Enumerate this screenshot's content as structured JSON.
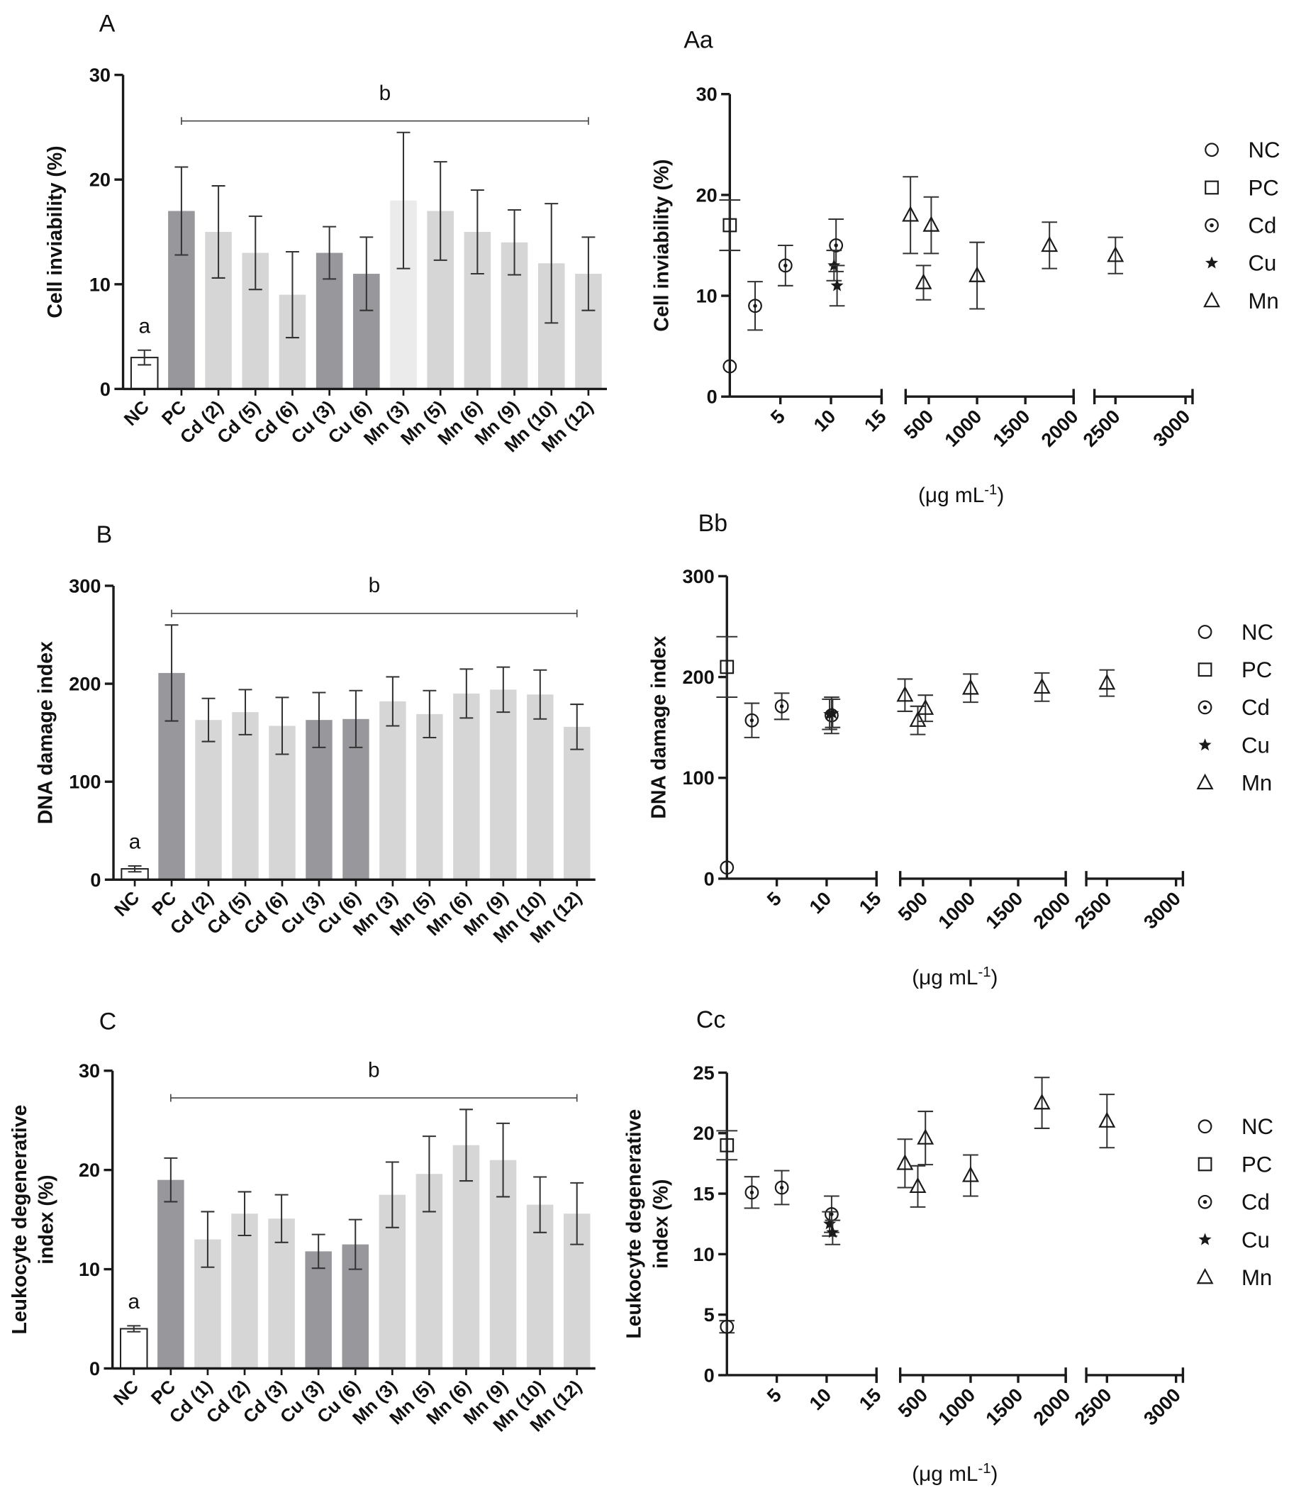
{
  "chart_data": [
    {
      "type": "bar",
      "panel": "A",
      "y_label": [
        "Cell inviability (%)"
      ],
      "categories": [
        "NC",
        "PC",
        "Cd (2)",
        "Cd (5)",
        "Cd (6)",
        "Cu (3)",
        "Cu (6)",
        "Mn (3)",
        "Mn (5)",
        "Mn (6)",
        "Mn (9)",
        "Mn (10)",
        "Mn (12)"
      ],
      "values": [
        3,
        17,
        15,
        13,
        9,
        13,
        11,
        18,
        17,
        15,
        14,
        12,
        11
      ],
      "errors": [
        0.7,
        4.2,
        4.4,
        3.5,
        4.1,
        2.5,
        3.5,
        6.5,
        4.7,
        4,
        3.1,
        5.7,
        3.5
      ],
      "colors": [
        "#ffffff",
        "#98989c",
        "#d6d6d6",
        "#d6d6d6",
        "#d6d6d6",
        "#98989c",
        "#98989c",
        "#ebebeb",
        "#d6d6d6",
        "#d6d6d6",
        "#d6d6d6",
        "#d6d6d6",
        "#d6d6d6"
      ],
      "annotations": [
        "a",
        "b"
      ],
      "ylim": [
        0,
        30
      ],
      "yticks": [
        0,
        10,
        20,
        30
      ]
    },
    {
      "type": "scatter",
      "panel": "Aa",
      "y_label": [
        "Cell inviability (%)"
      ],
      "x_label": "(μg mL",
      "x_label_sup": "-1",
      "x_label_close": ")",
      "x_segments": [
        {
          "xlim": [
            0,
            15
          ],
          "xticks": [
            5,
            10,
            15
          ]
        },
        {
          "xlim": [
            260,
            2000
          ],
          "xticks": [
            500,
            1000,
            1500,
            2000
          ]
        },
        {
          "xlim": [
            2350,
            3050
          ],
          "xticks": [
            2500,
            3000
          ]
        }
      ],
      "ylim": [
        0,
        30
      ],
      "yticks": [
        0,
        10,
        20,
        30
      ],
      "series": [
        {
          "name": "NC",
          "marker": "circle",
          "x": [
            0
          ],
          "values": [
            3
          ]
        },
        {
          "name": "PC",
          "marker": "square",
          "x": [
            0
          ],
          "values": [
            17
          ],
          "errors": [
            2.5
          ]
        },
        {
          "name": "Cd",
          "marker": "dot-circle",
          "x": [
            2.5,
            5.5,
            10.5
          ],
          "values": [
            9,
            13,
            15
          ],
          "errors": [
            2.4,
            2,
            2.6
          ]
        },
        {
          "name": "Cu",
          "marker": "star",
          "x": [
            10.3,
            10.6
          ],
          "values": [
            13,
            11
          ],
          "errors": [
            1.5,
            2
          ]
        },
        {
          "name": "Mn",
          "marker": "triangle",
          "x": [
            310,
            445,
            525,
            1000,
            1750,
            2500
          ],
          "values": [
            18,
            11.3,
            17,
            12,
            15,
            14
          ],
          "errors": [
            3.8,
            1.7,
            2.8,
            3.3,
            2.3,
            1.8
          ]
        }
      ]
    },
    {
      "type": "bar",
      "panel": "B",
      "y_label": [
        "DNA damage index"
      ],
      "categories": [
        "NC",
        "PC",
        "Cd (2)",
        "Cd (5)",
        "Cd (6)",
        "Cu (3)",
        "Cu (6)",
        "Mn (3)",
        "Mn (5)",
        "Mn (6)",
        "Mn (9)",
        "Mn (10)",
        "Mn (12)"
      ],
      "values": [
        11,
        211,
        163,
        171,
        157,
        163,
        164,
        182,
        169,
        190,
        194,
        189,
        156
      ],
      "errors": [
        3,
        49,
        22,
        23,
        29,
        28,
        29,
        25,
        24,
        25,
        23,
        25,
        23
      ],
      "colors": [
        "#ffffff",
        "#98989c",
        "#d6d6d6",
        "#d6d6d6",
        "#d6d6d6",
        "#98989c",
        "#98989c",
        "#d6d6d6",
        "#d6d6d6",
        "#d6d6d6",
        "#d6d6d6",
        "#d6d6d6",
        "#d6d6d6"
      ],
      "annotations": [
        "a",
        "b"
      ],
      "ylim": [
        0,
        300
      ],
      "yticks": [
        0,
        100,
        200,
        300
      ]
    },
    {
      "type": "scatter",
      "panel": "Bb",
      "y_label": [
        "DNA damage index"
      ],
      "x_label": "(μg mL",
      "x_label_sup": "-1",
      "x_label_close": ")",
      "x_segments": [
        {
          "xlim": [
            0,
            15
          ],
          "xticks": [
            5,
            10,
            15
          ]
        },
        {
          "xlim": [
            260,
            2000
          ],
          "xticks": [
            500,
            1000,
            1500,
            2000
          ]
        },
        {
          "xlim": [
            2350,
            3050
          ],
          "xticks": [
            2500,
            3000
          ]
        }
      ],
      "ylim": [
        0,
        300
      ],
      "yticks": [
        0,
        100,
        200,
        300
      ],
      "series": [
        {
          "name": "NC",
          "marker": "circle",
          "x": [
            0
          ],
          "values": [
            11
          ]
        },
        {
          "name": "PC",
          "marker": "square",
          "x": [
            0
          ],
          "values": [
            210
          ],
          "errors": [
            30
          ]
        },
        {
          "name": "Cd",
          "marker": "dot-circle",
          "x": [
            2.5,
            5.5,
            10.5
          ],
          "values": [
            157,
            171,
            162
          ],
          "errors": [
            17,
            13,
            18
          ]
        },
        {
          "name": "Cu",
          "marker": "star",
          "x": [
            10.3,
            10.6
          ],
          "values": [
            163,
            164
          ],
          "errors": [
            15,
            14
          ]
        },
        {
          "name": "Mn",
          "marker": "triangle",
          "x": [
            310,
            445,
            525,
            1000,
            1750,
            2500
          ],
          "values": [
            182,
            157,
            169,
            189,
            190,
            194
          ],
          "errors": [
            16,
            14,
            13,
            14,
            14,
            13
          ]
        }
      ]
    },
    {
      "type": "bar",
      "panel": "C",
      "y_label": [
        "Leukocyte degenerative",
        "index (%)"
      ],
      "categories": [
        "NC",
        "PC",
        "Cd (1)",
        "Cd (2)",
        "Cd (3)",
        "Cu (3)",
        "Cu (6)",
        "Mn (3)",
        "Mn (5)",
        "Mn (6)",
        "Mn (9)",
        "Mn (10)",
        "Mn (12)"
      ],
      "values": [
        4,
        19,
        13,
        15.6,
        15.1,
        11.8,
        12.5,
        17.5,
        19.6,
        22.5,
        21,
        16.5,
        15.6
      ],
      "errors": [
        0.3,
        2.2,
        2.8,
        2.2,
        2.4,
        1.7,
        2.5,
        3.3,
        3.8,
        3.6,
        3.7,
        2.8,
        3.1
      ],
      "colors": [
        "#ffffff",
        "#98989c",
        "#d6d6d6",
        "#d6d6d6",
        "#d6d6d6",
        "#98989c",
        "#98989c",
        "#d6d6d6",
        "#d6d6d6",
        "#d6d6d6",
        "#d6d6d6",
        "#d6d6d6",
        "#d6d6d6"
      ],
      "annotations": [
        "a",
        "b"
      ],
      "ylim": [
        0,
        30
      ],
      "yticks": [
        0,
        10,
        20,
        30
      ]
    },
    {
      "type": "scatter",
      "panel": "Cc",
      "y_label": [
        "Leukocyte degenerative",
        "index (%)"
      ],
      "x_label": "(μg mL",
      "x_label_sup": "-1",
      "x_label_close": ")",
      "x_segments": [
        {
          "xlim": [
            0,
            15
          ],
          "xticks": [
            5,
            10,
            15
          ]
        },
        {
          "xlim": [
            260,
            2000
          ],
          "xticks": [
            500,
            1000,
            1500,
            2000
          ]
        },
        {
          "xlim": [
            2350,
            3050
          ],
          "xticks": [
            2500,
            3000
          ]
        }
      ],
      "ylim": [
        0,
        25
      ],
      "yticks": [
        0,
        5,
        10,
        15,
        20,
        25
      ],
      "series": [
        {
          "name": "NC",
          "marker": "circle",
          "x": [
            0
          ],
          "values": [
            4
          ],
          "errors": [
            0.5
          ]
        },
        {
          "name": "PC",
          "marker": "square",
          "x": [
            0
          ],
          "values": [
            19
          ],
          "errors": [
            1.2
          ]
        },
        {
          "name": "Cd",
          "marker": "dot-circle",
          "x": [
            2.5,
            5.5,
            10.5
          ],
          "values": [
            15.1,
            15.5,
            13.3
          ],
          "errors": [
            1.3,
            1.4,
            1.5
          ]
        },
        {
          "name": "Cu",
          "marker": "star",
          "x": [
            10.3,
            10.6
          ],
          "values": [
            12.5,
            11.8
          ],
          "errors": [
            1,
            1
          ]
        },
        {
          "name": "Mn",
          "marker": "triangle",
          "x": [
            310,
            445,
            525,
            1000,
            1750,
            2500
          ],
          "values": [
            17.5,
            15.6,
            19.6,
            16.5,
            22.5,
            21
          ],
          "errors": [
            2,
            1.7,
            2.2,
            1.7,
            2.1,
            2.2
          ]
        }
      ]
    }
  ]
}
